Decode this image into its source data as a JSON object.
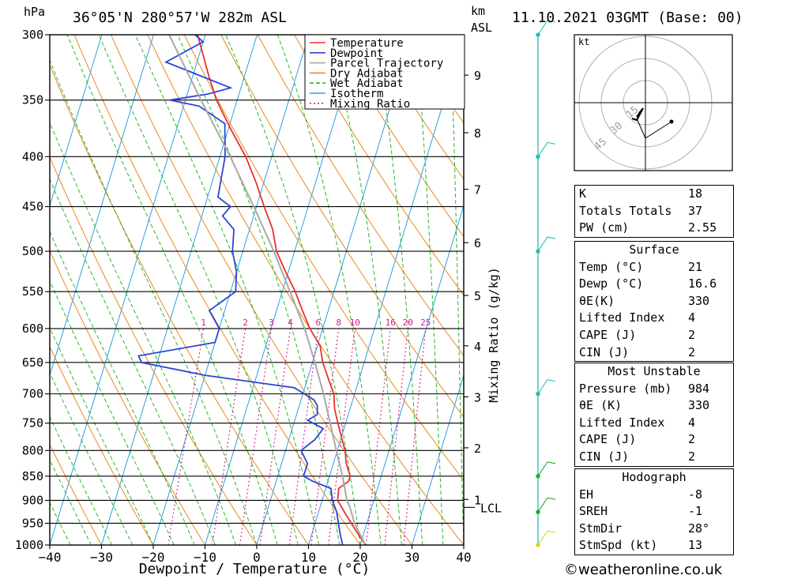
{
  "header": {
    "hpa_label": "hPa",
    "location": "36°05'N  280°57'W  282m  ASL",
    "km_label": "km",
    "asl_label": "ASL",
    "datetime": "11.10.2021  03GMT  (Base: 00)"
  },
  "legend": [
    {
      "label": "Temperature",
      "color": "#e8302a",
      "style": "solid"
    },
    {
      "label": "Dewpoint",
      "color": "#2a46d6",
      "style": "solid"
    },
    {
      "label": "Parcel Trajectory",
      "color": "#a8a8a8",
      "style": "solid"
    },
    {
      "label": "Dry Adiabat",
      "color": "#e8891f",
      "style": "solid"
    },
    {
      "label": "Wet Adiabat",
      "color": "#28b828",
      "style": "dashed"
    },
    {
      "label": "Isotherm",
      "color": "#2aa0e6",
      "style": "solid"
    },
    {
      "label": "Mixing Ratio",
      "color": "#d0208a",
      "style": "dotted"
    }
  ],
  "chart_data": {
    "type": "line",
    "title": "",
    "xlabel": "Dewpoint / Temperature (°C)",
    "ylabel": "hPa",
    "y2label": "Mixing Ratio (g/kg)",
    "xlim": [
      -40,
      40
    ],
    "ylim": [
      1000,
      300
    ],
    "x_ticks": [
      -40,
      -30,
      -20,
      -10,
      0,
      10,
      20,
      30,
      40
    ],
    "pressure_levels": [
      300,
      350,
      400,
      450,
      500,
      550,
      600,
      650,
      700,
      750,
      800,
      850,
      900,
      950,
      1000
    ],
    "km_ticks": [
      "1",
      "2",
      "3",
      "4",
      "5",
      "6",
      "7",
      "8",
      "9"
    ],
    "km_tick_pressures": [
      898,
      795,
      705,
      625,
      555,
      490,
      432,
      378,
      330
    ],
    "lcl_label": "LCL",
    "lcl_pressure": 915,
    "mixing_ratio_labels": [
      "1",
      "2",
      "3",
      "4",
      "6",
      "8",
      "10",
      "16",
      "20",
      "25"
    ],
    "mixing_ratio_values": [
      1,
      2,
      3,
      4,
      6,
      8,
      10,
      16,
      20,
      25
    ],
    "series": [
      {
        "name": "Temperature",
        "color": "#e8302a",
        "points": [
          [
            1000,
            21
          ],
          [
            975,
            19
          ],
          [
            950,
            17
          ],
          [
            925,
            15
          ],
          [
            900,
            13
          ],
          [
            875,
            12.5
          ],
          [
            860,
            14
          ],
          [
            850,
            14
          ],
          [
            825,
            12.5
          ],
          [
            800,
            11.5
          ],
          [
            775,
            10
          ],
          [
            750,
            8.5
          ],
          [
            725,
            7
          ],
          [
            700,
            6
          ],
          [
            675,
            4
          ],
          [
            650,
            2
          ],
          [
            625,
            0.5
          ],
          [
            600,
            -2.5
          ],
          [
            575,
            -5
          ],
          [
            550,
            -7.5
          ],
          [
            525,
            -10.5
          ],
          [
            500,
            -13.5
          ],
          [
            475,
            -15.5
          ],
          [
            450,
            -18.5
          ],
          [
            425,
            -21.5
          ],
          [
            400,
            -25
          ],
          [
            375,
            -29.5
          ],
          [
            350,
            -34
          ],
          [
            330,
            -37
          ],
          [
            300,
            -41.5
          ]
        ]
      },
      {
        "name": "Dewpoint",
        "color": "#2a46d6",
        "points": [
          [
            1000,
            16.6
          ],
          [
            975,
            15.5
          ],
          [
            950,
            14.5
          ],
          [
            925,
            13.5
          ],
          [
            900,
            12
          ],
          [
            875,
            11
          ],
          [
            860,
            7
          ],
          [
            850,
            5
          ],
          [
            825,
            5
          ],
          [
            800,
            3
          ],
          [
            780,
            5
          ],
          [
            760,
            6
          ],
          [
            745,
            2.5
          ],
          [
            735,
            4
          ],
          [
            720,
            3.5
          ],
          [
            710,
            2.5
          ],
          [
            690,
            -2
          ],
          [
            670,
            -20
          ],
          [
            650,
            -33
          ],
          [
            640,
            -34
          ],
          [
            620,
            -20
          ],
          [
            600,
            -20
          ],
          [
            575,
            -23
          ],
          [
            550,
            -19
          ],
          [
            525,
            -20
          ],
          [
            500,
            -22
          ],
          [
            475,
            -23
          ],
          [
            460,
            -26
          ],
          [
            450,
            -25
          ],
          [
            440,
            -28
          ],
          [
            400,
            -29
          ],
          [
            370,
            -31
          ],
          [
            355,
            -37
          ],
          [
            350,
            -43
          ],
          [
            345,
            -36
          ],
          [
            340,
            -32
          ],
          [
            320,
            -46
          ],
          [
            305,
            -40
          ],
          [
            300,
            -42
          ]
        ]
      },
      {
        "name": "Parcel Trajectory",
        "color": "#a8a8a8",
        "points": [
          [
            1000,
            21
          ],
          [
            950,
            17.6
          ],
          [
            915,
            15.8
          ],
          [
            900,
            14.8
          ],
          [
            850,
            12.5
          ],
          [
            800,
            9.8
          ],
          [
            750,
            7
          ],
          [
            700,
            4
          ],
          [
            650,
            0.5
          ],
          [
            600,
            -3.5
          ],
          [
            550,
            -8.5
          ],
          [
            500,
            -14
          ],
          [
            450,
            -20.5
          ],
          [
            400,
            -28
          ],
          [
            350,
            -37
          ],
          [
            300,
            -47
          ]
        ]
      }
    ],
    "skew_per_decade": 57.5
  },
  "winds": [
    {
      "label": "300hPa",
      "pressure": 300,
      "color": "#20c0c0"
    },
    {
      "label": "400hPa",
      "pressure": 400,
      "color": "#20c0c0"
    },
    {
      "label": "500hPa",
      "pressure": 500,
      "color": "#20c0c0"
    },
    {
      "label": "700hPa",
      "pressure": 700,
      "color": "#20c0c0"
    },
    {
      "label": "850hPa",
      "pressure": 850,
      "color": "#20b020"
    },
    {
      "label": "925hPa",
      "pressure": 925,
      "color": "#20b020"
    },
    {
      "label": "1000hPa",
      "pressure": 1000,
      "color": "#e0d020"
    }
  ],
  "hodograph": {
    "unit_label": "kt",
    "ring_labels": [
      "45",
      "30",
      "15"
    ]
  },
  "indices": {
    "rows": [
      {
        "label": "K",
        "value": "18"
      },
      {
        "label": "Totals Totals",
        "value": "37"
      },
      {
        "label": "PW (cm)",
        "value": "2.55"
      }
    ]
  },
  "surface": {
    "title": "Surface",
    "rows": [
      {
        "label": "Temp (°C)",
        "value": "21"
      },
      {
        "label": "Dewp (°C)",
        "value": "16.6"
      },
      {
        "label": "θE(K)",
        "value": "330"
      },
      {
        "label": "Lifted Index",
        "value": "4"
      },
      {
        "label": "CAPE (J)",
        "value": "2"
      },
      {
        "label": "CIN (J)",
        "value": "2"
      }
    ]
  },
  "most_unstable": {
    "title": "Most Unstable",
    "rows": [
      {
        "label": "Pressure (mb)",
        "value": "984"
      },
      {
        "label": "θE (K)",
        "value": "330"
      },
      {
        "label": "Lifted Index",
        "value": "4"
      },
      {
        "label": "CAPE (J)",
        "value": "2"
      },
      {
        "label": "CIN (J)",
        "value": "2"
      }
    ]
  },
  "hodograph_table": {
    "title": "Hodograph",
    "rows": [
      {
        "label": "EH",
        "value": "-8"
      },
      {
        "label": "SREH",
        "value": "-1"
      },
      {
        "label": "StmDir",
        "value": "28°"
      },
      {
        "label": "StmSpd (kt)",
        "value": "13"
      }
    ]
  },
  "footer": {
    "copyright": "©weatheronline.co.uk"
  },
  "colors": {
    "temperature": "#e8302a",
    "dewpoint": "#2a46d6",
    "parcel": "#a8a8a8",
    "dry_adiabat": "#e8891f",
    "wet_adiabat": "#28b828",
    "isotherm": "#2aa0e6",
    "mixing_ratio": "#d0208a"
  }
}
